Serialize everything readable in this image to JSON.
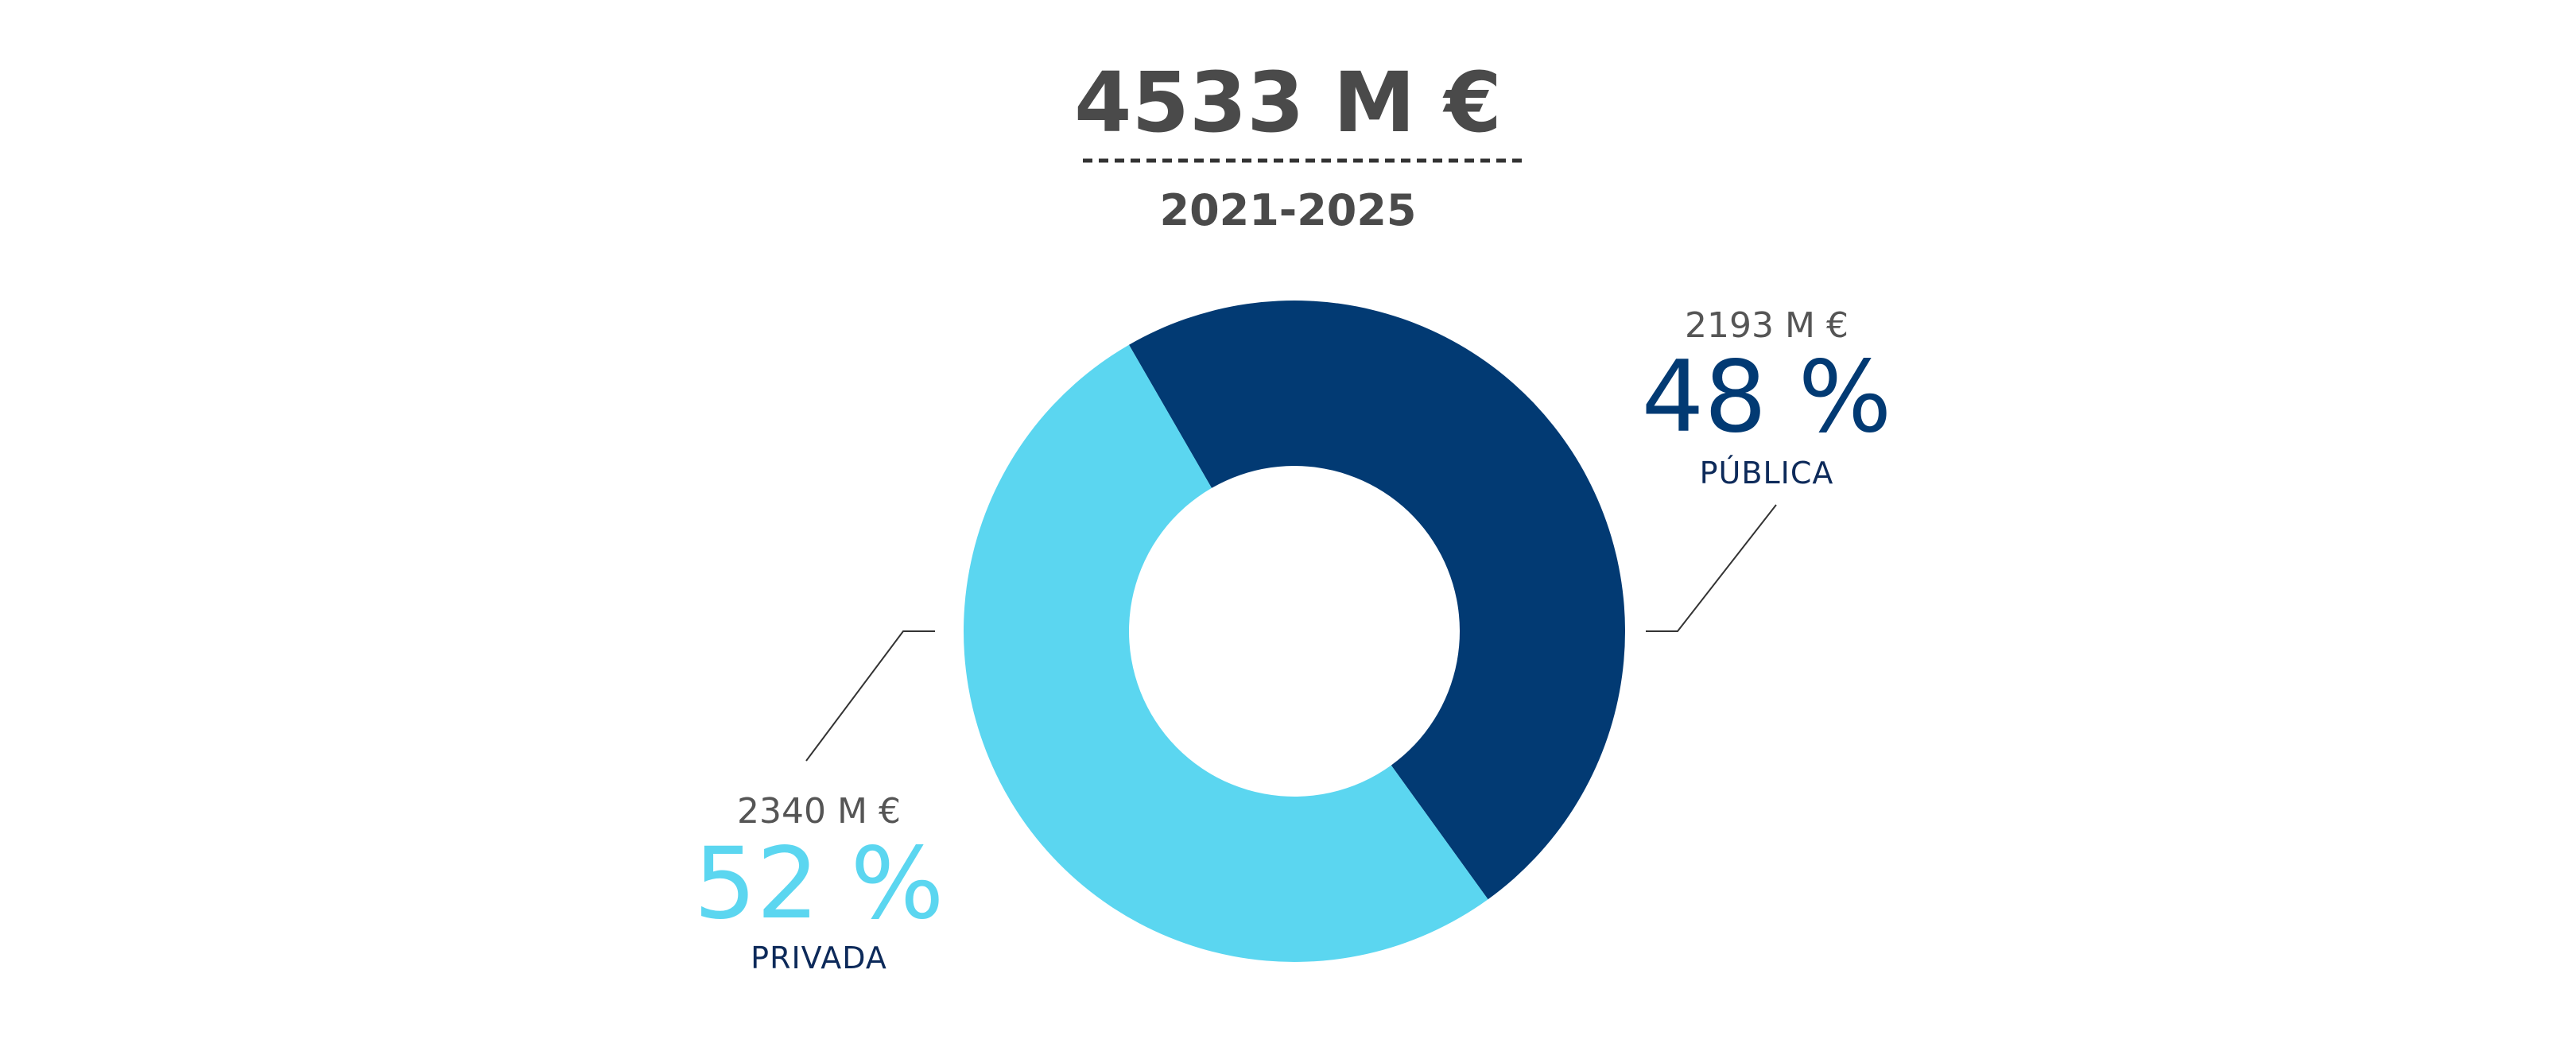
{
  "chart_data": {
    "type": "pie",
    "variant": "donut",
    "title": "4533 M €",
    "subtitle": "2021-2025",
    "slices": [
      {
        "label": "PÚBLICA",
        "amount": "2193 M €",
        "value": 2193,
        "percent_label": "48 %",
        "percent": 48,
        "color": "#023a73"
      },
      {
        "label": "PRIVADA",
        "amount": "2340 M €",
        "value": 2340,
        "percent_label": "52 %",
        "percent": 52,
        "color": "#5bd6f0"
      }
    ]
  }
}
